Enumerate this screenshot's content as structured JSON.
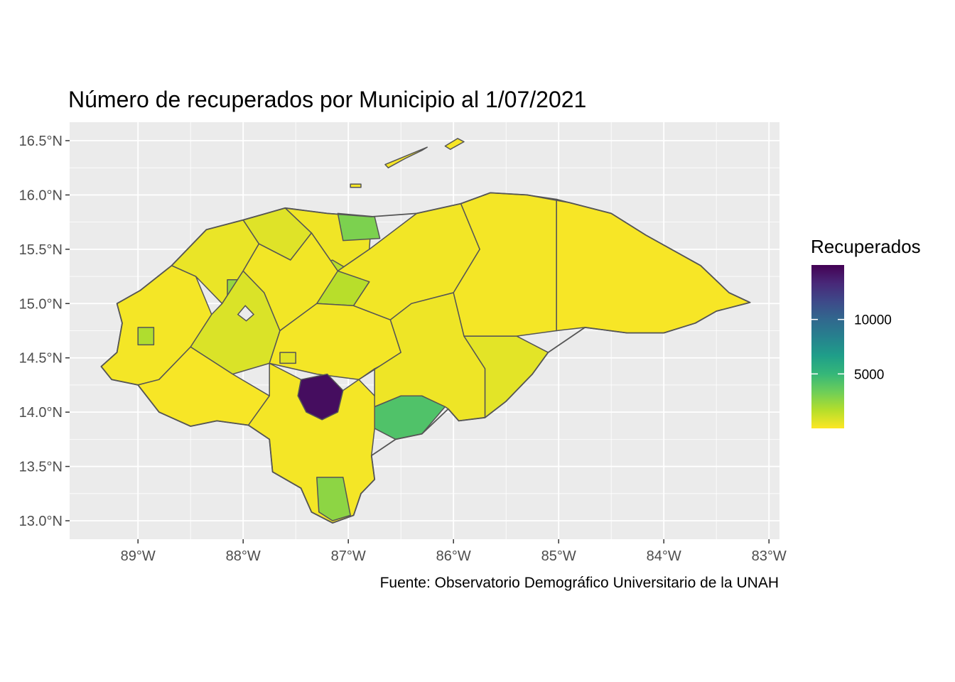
{
  "title": "Número de recuperados por Municipio al 1/07/2021",
  "caption": "Fuente: Observatorio Demográfico Universitario de la UNAH",
  "colors": {
    "panel_bg": "#ebebeb",
    "grid": "#ffffff",
    "border": "#555555",
    "scale": [
      "#fde725",
      "#b5de2b",
      "#6ece58",
      "#35b779",
      "#1f9e89",
      "#26828e",
      "#31688e",
      "#3e4989",
      "#482878",
      "#440154"
    ]
  },
  "chart_data": {
    "type": "choropleth",
    "x_axis": {
      "range": [
        -89.65,
        -82.9
      ],
      "ticks": [
        {
          "value": -89,
          "label": "89°W"
        },
        {
          "value": -88,
          "label": "88°W"
        },
        {
          "value": -87,
          "label": "87°W"
        },
        {
          "value": -86,
          "label": "86°W"
        },
        {
          "value": -85,
          "label": "85°W"
        },
        {
          "value": -84,
          "label": "84°W"
        },
        {
          "value": -83,
          "label": "83°W"
        }
      ]
    },
    "y_axis": {
      "range": [
        12.83,
        16.67
      ],
      "ticks": [
        {
          "value": 13.0,
          "label": "13.0°N"
        },
        {
          "value": 13.5,
          "label": "13.5°N"
        },
        {
          "value": 14.0,
          "label": "14.0°N"
        },
        {
          "value": 14.5,
          "label": "14.5°N"
        },
        {
          "value": 15.0,
          "label": "15.0°N"
        },
        {
          "value": 15.5,
          "label": "15.5°N"
        },
        {
          "value": 16.0,
          "label": "16.0°N"
        },
        {
          "value": 16.5,
          "label": "16.5°N"
        }
      ]
    },
    "legend": {
      "title": "Recuperados",
      "min": 0,
      "max": 15000,
      "breaks": [
        {
          "value": 5000,
          "label": "5000"
        },
        {
          "value": 10000,
          "label": "10000"
        }
      ],
      "placement": "right"
    },
    "country_outline": [
      [
        -89.35,
        14.42
      ],
      [
        -89.2,
        14.55
      ],
      [
        -89.15,
        14.82
      ],
      [
        -89.2,
        15.0
      ],
      [
        -88.98,
        15.12
      ],
      [
        -88.68,
        15.35
      ],
      [
        -88.35,
        15.68
      ],
      [
        -88.0,
        15.77
      ],
      [
        -87.6,
        15.88
      ],
      [
        -87.2,
        15.83
      ],
      [
        -86.78,
        15.8
      ],
      [
        -86.35,
        15.83
      ],
      [
        -85.93,
        15.92
      ],
      [
        -85.65,
        16.02
      ],
      [
        -85.3,
        16.0
      ],
      [
        -84.9,
        15.93
      ],
      [
        -84.5,
        15.83
      ],
      [
        -84.17,
        15.63
      ],
      [
        -83.65,
        15.35
      ],
      [
        -83.38,
        15.1
      ],
      [
        -83.18,
        15.01
      ],
      [
        -83.5,
        14.93
      ],
      [
        -83.7,
        14.82
      ],
      [
        -84.0,
        14.73
      ],
      [
        -84.35,
        14.73
      ],
      [
        -84.75,
        14.78
      ],
      [
        -85.1,
        14.55
      ],
      [
        -85.25,
        14.35
      ],
      [
        -85.5,
        14.1
      ],
      [
        -85.7,
        13.95
      ],
      [
        -85.95,
        13.92
      ],
      [
        -86.05,
        14.03
      ],
      [
        -86.3,
        13.8
      ],
      [
        -86.55,
        13.75
      ],
      [
        -86.78,
        13.6
      ],
      [
        -86.75,
        13.38
      ],
      [
        -86.88,
        13.25
      ],
      [
        -86.95,
        13.05
      ],
      [
        -87.15,
        12.98
      ],
      [
        -87.35,
        13.08
      ],
      [
        -87.45,
        13.3
      ],
      [
        -87.72,
        13.45
      ],
      [
        -87.75,
        13.75
      ],
      [
        -87.95,
        13.88
      ],
      [
        -88.25,
        13.92
      ],
      [
        -88.5,
        13.87
      ],
      [
        -88.8,
        14.0
      ],
      [
        -89.0,
        14.25
      ],
      [
        -89.25,
        14.3
      ]
    ],
    "regions": [
      {
        "values": 200,
        "polygon": [
          [
            -89.35,
            14.42
          ],
          [
            -89.2,
            14.55
          ],
          [
            -89.15,
            14.82
          ],
          [
            -89.2,
            15.0
          ],
          [
            -88.98,
            15.12
          ],
          [
            -88.68,
            15.35
          ],
          [
            -88.45,
            15.25
          ],
          [
            -88.3,
            14.9
          ],
          [
            -88.5,
            14.6
          ],
          [
            -88.8,
            14.3
          ],
          [
            -89.0,
            14.25
          ],
          [
            -89.25,
            14.3
          ]
        ]
      },
      {
        "values": 450,
        "polygon": [
          [
            -88.68,
            15.35
          ],
          [
            -88.35,
            15.68
          ],
          [
            -88.0,
            15.77
          ],
          [
            -87.85,
            15.55
          ],
          [
            -88.0,
            15.3
          ],
          [
            -88.2,
            15.0
          ],
          [
            -88.45,
            15.25
          ]
        ]
      },
      {
        "values": 2400,
        "polygon": [
          [
            -88.15,
            15.22
          ],
          [
            -88.15,
            15.05
          ],
          [
            -87.9,
            15.05
          ],
          [
            -87.9,
            15.22
          ]
        ]
      },
      {
        "values": 1800,
        "polygon": [
          [
            -89.0,
            14.78
          ],
          [
            -89.0,
            14.62
          ],
          [
            -88.85,
            14.62
          ],
          [
            -88.85,
            14.78
          ]
        ]
      },
      {
        "values": 800,
        "polygon": [
          [
            -88.3,
            14.9
          ],
          [
            -88.2,
            15.0
          ],
          [
            -88.0,
            15.3
          ],
          [
            -87.8,
            15.1
          ],
          [
            -87.65,
            14.75
          ],
          [
            -87.75,
            14.45
          ],
          [
            -88.1,
            14.35
          ],
          [
            -88.5,
            14.6
          ]
        ]
      },
      {
        "values": 150,
        "polygon": [
          [
            -88.8,
            14.3
          ],
          [
            -88.5,
            14.6
          ],
          [
            -88.1,
            14.35
          ],
          [
            -87.75,
            14.15
          ],
          [
            -87.95,
            13.88
          ],
          [
            -88.25,
            13.92
          ],
          [
            -88.5,
            13.87
          ],
          [
            -88.8,
            14.0
          ],
          [
            -89.0,
            14.25
          ]
        ]
      },
      {
        "values": 700,
        "polygon": [
          [
            -88.0,
            15.77
          ],
          [
            -87.6,
            15.88
          ],
          [
            -87.35,
            15.65
          ],
          [
            -87.55,
            15.4
          ],
          [
            -87.85,
            15.55
          ]
        ]
      },
      {
        "values": 300,
        "polygon": [
          [
            -87.6,
            15.88
          ],
          [
            -87.2,
            15.83
          ],
          [
            -86.78,
            15.8
          ],
          [
            -86.8,
            15.5
          ],
          [
            -87.1,
            15.3
          ],
          [
            -87.35,
            15.65
          ]
        ]
      },
      {
        "values": 3000,
        "polygon": [
          [
            -87.1,
            15.83
          ],
          [
            -86.75,
            15.8
          ],
          [
            -86.7,
            15.6
          ],
          [
            -87.05,
            15.58
          ]
        ]
      },
      {
        "values": 1600,
        "polygon": [
          [
            -87.45,
            15.3
          ],
          [
            -87.15,
            15.4
          ],
          [
            -86.8,
            15.2
          ],
          [
            -86.95,
            14.98
          ],
          [
            -87.3,
            15.0
          ],
          [
            -87.5,
            15.12
          ]
        ]
      },
      {
        "values": 250,
        "polygon": [
          [
            -87.85,
            15.55
          ],
          [
            -87.55,
            15.4
          ],
          [
            -87.35,
            15.65
          ],
          [
            -87.1,
            15.3
          ],
          [
            -87.3,
            15.0
          ],
          [
            -87.65,
            14.75
          ],
          [
            -87.8,
            15.1
          ],
          [
            -88.0,
            15.3
          ]
        ]
      },
      {
        "values": 200,
        "polygon": [
          [
            -87.65,
            14.75
          ],
          [
            -87.3,
            15.0
          ],
          [
            -86.95,
            14.98
          ],
          [
            -86.6,
            14.85
          ],
          [
            -86.5,
            14.55
          ],
          [
            -86.9,
            14.3
          ],
          [
            -87.3,
            14.35
          ],
          [
            -87.75,
            14.45
          ]
        ]
      },
      {
        "values": 650,
        "polygon": [
          [
            -87.65,
            14.55
          ],
          [
            -87.65,
            14.45
          ],
          [
            -87.5,
            14.45
          ],
          [
            -87.5,
            14.55
          ]
        ]
      },
      {
        "values": 14500,
        "polygon": [
          [
            -87.45,
            14.3
          ],
          [
            -87.2,
            14.35
          ],
          [
            -87.05,
            14.2
          ],
          [
            -87.1,
            14.0
          ],
          [
            -87.25,
            13.93
          ],
          [
            -87.4,
            14.0
          ],
          [
            -87.48,
            14.15
          ]
        ]
      },
      {
        "values": 200,
        "polygon": [
          [
            -87.75,
            14.15
          ],
          [
            -87.75,
            14.45
          ],
          [
            -87.45,
            14.3
          ],
          [
            -87.48,
            14.15
          ],
          [
            -87.4,
            14.0
          ],
          [
            -87.25,
            13.93
          ],
          [
            -87.1,
            14.0
          ],
          [
            -87.05,
            14.2
          ],
          [
            -86.9,
            14.3
          ],
          [
            -86.7,
            14.1
          ],
          [
            -86.75,
            13.85
          ],
          [
            -86.78,
            13.6
          ],
          [
            -86.75,
            13.38
          ],
          [
            -86.88,
            13.25
          ],
          [
            -86.95,
            13.05
          ],
          [
            -87.15,
            12.98
          ],
          [
            -87.35,
            13.08
          ],
          [
            -87.45,
            13.3
          ],
          [
            -87.72,
            13.45
          ],
          [
            -87.75,
            13.75
          ],
          [
            -87.95,
            13.88
          ]
        ]
      },
      {
        "values": 2600,
        "polygon": [
          [
            -87.3,
            13.4
          ],
          [
            -87.05,
            13.4
          ],
          [
            -86.98,
            13.05
          ],
          [
            -87.15,
            13.0
          ],
          [
            -87.28,
            13.08
          ]
        ]
      },
      {
        "values": 4200,
        "polygon": [
          [
            -86.75,
            14.05
          ],
          [
            -86.5,
            14.15
          ],
          [
            -86.3,
            14.15
          ],
          [
            -86.08,
            14.05
          ],
          [
            -86.3,
            13.8
          ],
          [
            -86.55,
            13.75
          ],
          [
            -86.75,
            13.85
          ]
        ]
      },
      {
        "values": 1200,
        "polygon": [
          [
            -86.75,
            14.4
          ],
          [
            -86.45,
            14.55
          ],
          [
            -86.15,
            14.5
          ],
          [
            -86.2,
            14.25
          ],
          [
            -86.5,
            14.15
          ]
        ]
      },
      {
        "values": 250,
        "polygon": [
          [
            -86.8,
            15.5
          ],
          [
            -86.35,
            15.83
          ],
          [
            -85.93,
            15.92
          ],
          [
            -85.75,
            15.5
          ],
          [
            -86.0,
            15.1
          ],
          [
            -86.4,
            15.0
          ],
          [
            -86.6,
            14.85
          ],
          [
            -86.95,
            14.98
          ],
          [
            -86.8,
            15.2
          ],
          [
            -87.1,
            15.3
          ]
        ]
      },
      {
        "values": 350,
        "polygon": [
          [
            -86.6,
            14.85
          ],
          [
            -86.4,
            15.0
          ],
          [
            -86.0,
            15.1
          ],
          [
            -85.9,
            14.7
          ],
          [
            -85.7,
            14.4
          ],
          [
            -85.7,
            13.95
          ],
          [
            -85.95,
            13.92
          ],
          [
            -86.05,
            14.03
          ],
          [
            -86.08,
            14.05
          ],
          [
            -86.3,
            14.15
          ],
          [
            -86.5,
            14.15
          ],
          [
            -86.75,
            14.05
          ],
          [
            -86.75,
            14.4
          ],
          [
            -86.9,
            14.3
          ],
          [
            -86.5,
            14.55
          ]
        ]
      },
      {
        "values": 600,
        "polygon": [
          [
            -85.9,
            14.7
          ],
          [
            -85.4,
            14.7
          ],
          [
            -85.1,
            14.55
          ],
          [
            -85.25,
            14.35
          ],
          [
            -85.5,
            14.1
          ],
          [
            -85.7,
            13.95
          ],
          [
            -85.7,
            14.4
          ]
        ]
      },
      {
        "values": 200,
        "polygon": [
          [
            -85.93,
            15.92
          ],
          [
            -85.65,
            16.02
          ],
          [
            -85.3,
            16.0
          ],
          [
            -85.02,
            15.96
          ],
          [
            -85.02,
            14.75
          ],
          [
            -85.4,
            14.7
          ],
          [
            -85.9,
            14.7
          ],
          [
            -86.0,
            15.1
          ],
          [
            -85.75,
            15.5
          ]
        ]
      },
      {
        "values": 150,
        "polygon": [
          [
            -85.02,
            15.96
          ],
          [
            -84.9,
            15.93
          ],
          [
            -84.5,
            15.83
          ],
          [
            -84.17,
            15.63
          ],
          [
            -83.65,
            15.35
          ],
          [
            -83.38,
            15.1
          ],
          [
            -83.18,
            15.01
          ],
          [
            -83.5,
            14.93
          ],
          [
            -83.7,
            14.82
          ],
          [
            -84.0,
            14.73
          ],
          [
            -84.35,
            14.73
          ],
          [
            -84.75,
            14.78
          ],
          [
            -85.02,
            14.75
          ]
        ]
      }
    ],
    "islands": [
      [
        [
          -86.65,
          16.28
        ],
        [
          -86.4,
          16.38
        ],
        [
          -86.25,
          16.44
        ],
        [
          -86.3,
          16.41
        ],
        [
          -86.45,
          16.34
        ],
        [
          -86.62,
          16.25
        ]
      ],
      [
        [
          -86.08,
          16.45
        ],
        [
          -85.96,
          16.52
        ],
        [
          -85.9,
          16.49
        ],
        [
          -86.03,
          16.42
        ]
      ],
      [
        [
          -86.98,
          16.1
        ],
        [
          -86.88,
          16.1
        ],
        [
          -86.88,
          16.07
        ],
        [
          -86.98,
          16.07
        ]
      ]
    ],
    "lake": [
      [
        -87.98,
        14.98
      ],
      [
        -87.9,
        14.9
      ],
      [
        -87.97,
        14.84
      ],
      [
        -88.05,
        14.9
      ]
    ]
  }
}
